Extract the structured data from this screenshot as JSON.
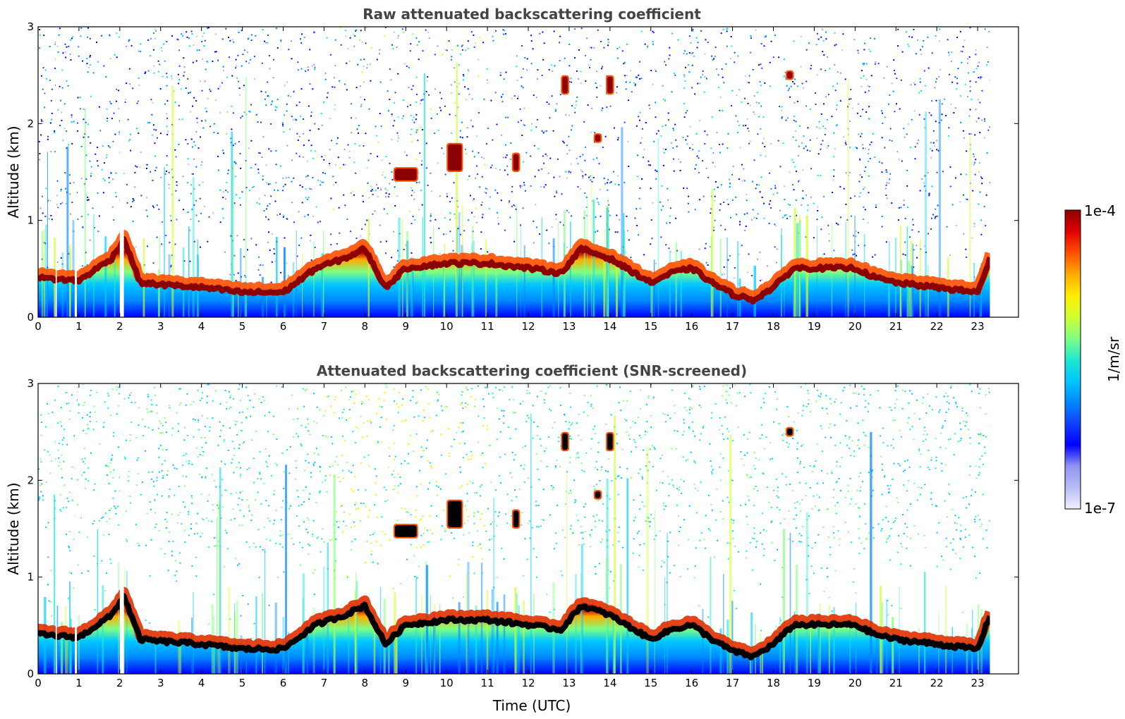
{
  "colors": {
    "colormap": [
      "#f0f0fb",
      "#b8bdf4",
      "#8f96f0",
      "#0000ff",
      "#1040ff",
      "#0088ff",
      "#00c8ff",
      "#20e8d0",
      "#80ff80",
      "#d0ff30",
      "#ffee00",
      "#ffaa00",
      "#ff5000",
      "#e00000",
      "#8b0000"
    ],
    "thick_layer_screened": "#000000",
    "axis": "#000000",
    "title": "#444444"
  },
  "colorbar": {
    "label": "1/m/sr",
    "max_label": "1e-4",
    "min_label": "1e-7",
    "scale": "log",
    "range": [
      1e-07,
      0.0001
    ]
  },
  "chart_data": [
    {
      "type": "heatmap",
      "panel": "top",
      "title": "Raw attenuated backscattering coefficient",
      "xlabel": "",
      "ylabel": "Altitude (km)",
      "xlim": [
        0,
        24
      ],
      "ylim": [
        0,
        3
      ],
      "data_extent_hours": [
        0,
        23.3
      ],
      "x_ticks": [
        "0",
        "1",
        "2",
        "3",
        "4",
        "5",
        "6",
        "7",
        "8",
        "9",
        "10",
        "11",
        "12",
        "13",
        "14",
        "15",
        "16",
        "17",
        "18",
        "19",
        "20",
        "21",
        "22",
        "23"
      ],
      "y_ticks": [
        "0",
        "1",
        "2",
        "3"
      ],
      "boundary_layer_top_km": {
        "time_hours": [
          0,
          1,
          1.8,
          2.1,
          2.5,
          3,
          4,
          5,
          6,
          6.8,
          7.5,
          8,
          8.5,
          9,
          10,
          11,
          12,
          12.8,
          13.3,
          14,
          15,
          15.5,
          16,
          16.5,
          17,
          17.5,
          18,
          18.5,
          19,
          20,
          20.5,
          21,
          22,
          23,
          23.3
        ],
        "altitude_km": [
          0.45,
          0.42,
          0.65,
          0.85,
          0.4,
          0.38,
          0.35,
          0.3,
          0.3,
          0.55,
          0.65,
          0.75,
          0.35,
          0.55,
          0.6,
          0.6,
          0.55,
          0.5,
          0.75,
          0.65,
          0.4,
          0.5,
          0.55,
          0.4,
          0.28,
          0.22,
          0.35,
          0.55,
          0.55,
          0.55,
          0.45,
          0.4,
          0.35,
          0.3,
          0.65
        ]
      },
      "cloud_features": [
        {
          "time_hours": [
            8.7,
            9.3
          ],
          "altitude_km": [
            1.4,
            1.55
          ]
        },
        {
          "time_hours": [
            10.0,
            10.4
          ],
          "altitude_km": [
            1.5,
            1.8
          ]
        },
        {
          "time_hours": [
            11.6,
            11.8
          ],
          "altitude_km": [
            1.5,
            1.7
          ]
        },
        {
          "time_hours": [
            12.8,
            13.0
          ],
          "altitude_km": [
            2.3,
            2.5
          ]
        },
        {
          "time_hours": [
            13.9,
            14.1
          ],
          "altitude_km": [
            2.3,
            2.5
          ]
        },
        {
          "time_hours": [
            13.6,
            13.8
          ],
          "altitude_km": [
            1.8,
            1.9
          ]
        },
        {
          "time_hours": [
            18.3,
            18.5
          ],
          "altitude_km": [
            2.45,
            2.55
          ]
        }
      ]
    },
    {
      "type": "heatmap",
      "panel": "bottom",
      "title": "Attenuated backscattering coefficient (SNR-screened)",
      "xlabel": "Time (UTC)",
      "ylabel": "Altitude (km)",
      "xlim": [
        0,
        24
      ],
      "ylim": [
        0,
        3
      ],
      "data_extent_hours": [
        0,
        23.3
      ],
      "x_ticks": [
        "0",
        "1",
        "2",
        "3",
        "4",
        "5",
        "6",
        "7",
        "8",
        "9",
        "10",
        "11",
        "12",
        "13",
        "14",
        "15",
        "16",
        "17",
        "18",
        "19",
        "20",
        "21",
        "22",
        "23"
      ],
      "y_ticks": [
        "0",
        "1",
        "2",
        "3"
      ]
    }
  ]
}
